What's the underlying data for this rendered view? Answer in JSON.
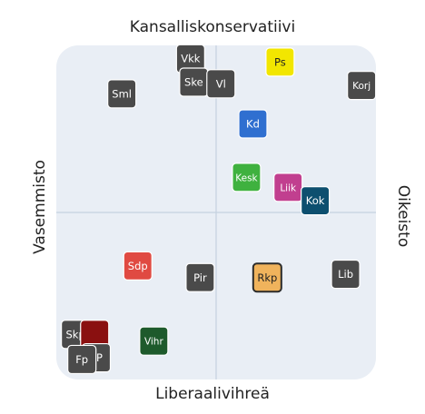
{
  "chart_data": {
    "type": "scatter",
    "title": "",
    "x_axis": {
      "left_label": "Vasemmisto",
      "right_label": "Oikeisto",
      "range": [
        -1,
        1
      ]
    },
    "y_axis": {
      "top_label": "Kansalliskonservatiivi",
      "bottom_label": "Liberaalivihreä",
      "range": [
        -1,
        1
      ]
    },
    "grid": "single crosshair at origin",
    "points": [
      {
        "label": "Vkk",
        "x": -0.16,
        "y": 0.92,
        "color": "#4a4a4a"
      },
      {
        "label": "Ske",
        "x": -0.14,
        "y": 0.78,
        "color": "#4a4a4a"
      },
      {
        "label": "Vl",
        "x": 0.03,
        "y": 0.77,
        "color": "#4a4a4a"
      },
      {
        "label": "Ps",
        "x": 0.4,
        "y": 0.9,
        "color": "#f2e600"
      },
      {
        "label": "Korj",
        "x": 0.91,
        "y": 0.76,
        "color": "#4a4a4a"
      },
      {
        "label": "Sml",
        "x": -0.59,
        "y": 0.71,
        "color": "#4a4a4a"
      },
      {
        "label": "Kd",
        "x": 0.23,
        "y": 0.53,
        "color": "#2f6fd0"
      },
      {
        "label": "Kesk",
        "x": 0.19,
        "y": 0.21,
        "color": "#3fb13f"
      },
      {
        "label": "Liik",
        "x": 0.45,
        "y": 0.15,
        "color": "#c13f8f"
      },
      {
        "label": "Kok",
        "x": 0.62,
        "y": 0.07,
        "color": "#0d4f6f"
      },
      {
        "label": "Sdp",
        "x": -0.49,
        "y": -0.32,
        "color": "#e04a42"
      },
      {
        "label": "Pir",
        "x": -0.1,
        "y": -0.39,
        "color": "#4a4a4a"
      },
      {
        "label": "Rkp",
        "x": 0.32,
        "y": -0.39,
        "color": "#f0b35c"
      },
      {
        "label": "Lib",
        "x": 0.81,
        "y": -0.37,
        "color": "#4a4a4a"
      },
      {
        "label": "Skp",
        "x": -0.88,
        "y": -0.73,
        "color": "#4a4a4a"
      },
      {
        "label": "",
        "x": -0.76,
        "y": -0.73,
        "color": "#8a1010"
      },
      {
        "label": "PP",
        "x": -0.75,
        "y": -0.87,
        "color": "#4a4a4a"
      },
      {
        "label": "Fp",
        "x": -0.84,
        "y": -0.88,
        "color": "#4a4a4a"
      },
      {
        "label": "Vihr",
        "x": -0.39,
        "y": -0.77,
        "color": "#1e5a2c"
      }
    ]
  }
}
